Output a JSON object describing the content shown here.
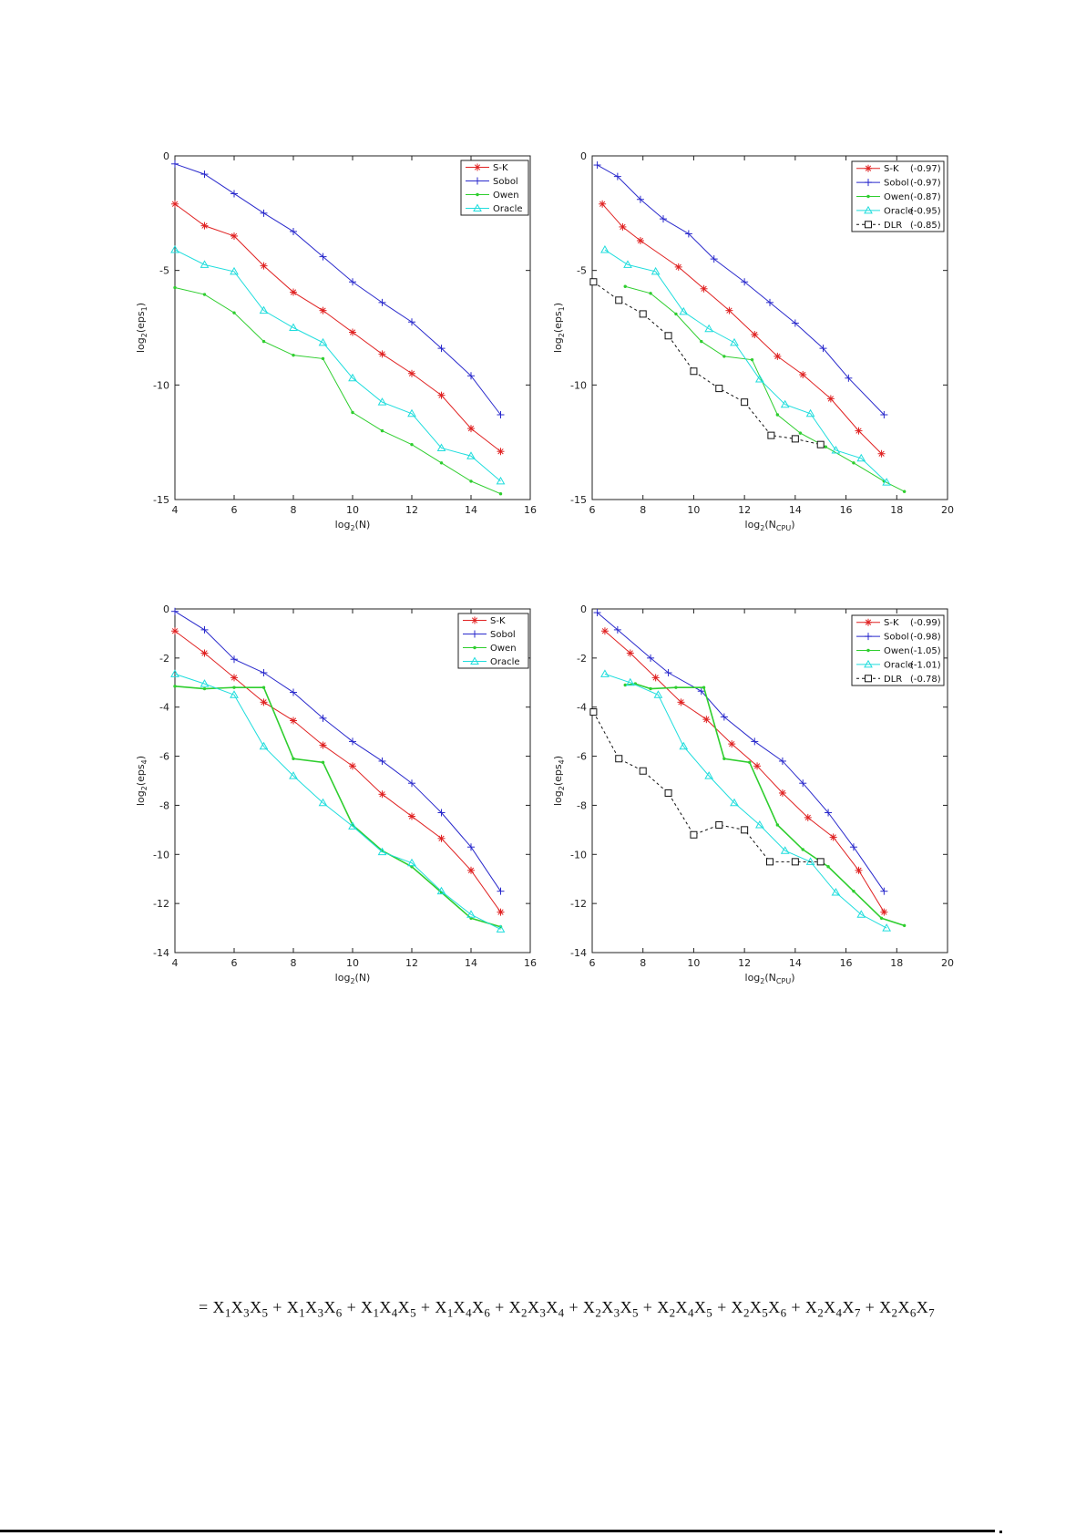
{
  "page": {
    "equation": "= X_{1}X_{3}X_{5} + X_{1}X_{3}X_{6} + X_{1}X_{4}X_{5} + X_{1}X_{4}X_{6} + X_{2}X_{3}X_{4} + X_{2}X_{3}X_{5} + X_{2}X_{4}X_{5} + X_{2}X_{5}X_{6} + X_{2}X_{4}X_{7} + X_{2}X_{6}X_{7}"
  },
  "colors": {
    "sk": "#e02222",
    "sobol": "#2929cc",
    "owen": "#2fce2f",
    "oracle": "#1fdddd",
    "dlr": "#111111",
    "axis": "#222222"
  },
  "chart_data": [
    {
      "type": "line",
      "title": "",
      "xlabel": "log_{2}(N)",
      "ylabel": "log_{2}(eps_{1})",
      "xlim": [
        4,
        16
      ],
      "ylim": [
        -15,
        0
      ],
      "xticks": [
        4,
        6,
        8,
        10,
        12,
        14,
        16
      ],
      "yticks": [
        0,
        -5,
        -10,
        -15
      ],
      "grid": false,
      "legend_position": "top-right",
      "series": [
        {
          "name": "S-K",
          "rate": "",
          "color": "#e02222",
          "marker": "star",
          "dash": false,
          "x": [
            4,
            5,
            6,
            7,
            8,
            9,
            10,
            11,
            12,
            13,
            14,
            15
          ],
          "y": [
            -2.1,
            -3.05,
            -3.5,
            -4.8,
            -5.95,
            -6.75,
            -7.7,
            -8.65,
            -9.5,
            -10.45,
            -11.9,
            -12.9
          ]
        },
        {
          "name": "Sobol",
          "rate": "",
          "color": "#2929cc",
          "marker": "plus",
          "dash": false,
          "x": [
            4,
            5,
            6,
            7,
            8,
            9,
            10,
            11,
            12,
            13,
            14,
            15
          ],
          "y": [
            -0.35,
            -0.8,
            -1.65,
            -2.5,
            -3.3,
            -4.4,
            -5.5,
            -6.4,
            -7.25,
            -8.4,
            -9.6,
            -11.3
          ]
        },
        {
          "name": "Owen",
          "rate": "",
          "color": "#2fce2f",
          "marker": "dot",
          "dash": false,
          "x": [
            4,
            5,
            6,
            7,
            8,
            9,
            10,
            11,
            12,
            13,
            14,
            15
          ],
          "y": [
            -5.75,
            -6.05,
            -6.85,
            -8.1,
            -8.7,
            -8.85,
            -11.2,
            -12.0,
            -12.6,
            -13.4,
            -14.2,
            -14.75
          ]
        },
        {
          "name": "Oracle",
          "rate": "",
          "color": "#1fdddd",
          "marker": "triangle",
          "dash": false,
          "x": [
            4,
            5,
            6,
            7,
            8,
            9,
            10,
            11,
            12,
            13,
            14,
            15
          ],
          "y": [
            -4.1,
            -4.75,
            -5.05,
            -6.75,
            -7.5,
            -8.15,
            -9.7,
            -10.75,
            -11.25,
            -12.75,
            -13.1,
            -14.2
          ]
        }
      ]
    },
    {
      "type": "line",
      "title": "",
      "xlabel": "log_{2}(N_{CPU})",
      "ylabel": "log_{2}(eps_{1})",
      "xlim": [
        6,
        20
      ],
      "ylim": [
        -15,
        0
      ],
      "xticks": [
        6,
        8,
        10,
        12,
        14,
        16,
        18,
        20
      ],
      "yticks": [
        0,
        -5,
        -10,
        -15
      ],
      "grid": false,
      "legend_position": "top-right",
      "series": [
        {
          "name": "S-K",
          "rate": "(-0.97)",
          "color": "#e02222",
          "marker": "star",
          "dash": false,
          "x": [
            6.4,
            7.2,
            7.9,
            9.4,
            10.4,
            11.4,
            12.4,
            13.3,
            14.3,
            15.4,
            16.5,
            17.4
          ],
          "y": [
            -2.1,
            -3.1,
            -3.7,
            -4.85,
            -5.8,
            -6.75,
            -7.8,
            -8.75,
            -9.55,
            -10.6,
            -12.0,
            -13.0
          ]
        },
        {
          "name": "Sobol",
          "rate": "(-0.97)",
          "color": "#2929cc",
          "marker": "plus",
          "dash": false,
          "x": [
            6.2,
            7.0,
            7.9,
            8.8,
            9.8,
            10.8,
            12.0,
            13.0,
            14.0,
            15.1,
            16.1,
            17.5
          ],
          "y": [
            -0.4,
            -0.9,
            -1.9,
            -2.75,
            -3.4,
            -4.5,
            -5.5,
            -6.4,
            -7.3,
            -8.4,
            -9.7,
            -11.3
          ]
        },
        {
          "name": "Owen",
          "rate": "(-0.87)",
          "color": "#2fce2f",
          "marker": "dot",
          "dash": false,
          "x": [
            7.3,
            8.3,
            9.3,
            10.3,
            11.2,
            12.3,
            13.3,
            14.2,
            15.2,
            16.3,
            17.5,
            18.3
          ],
          "y": [
            -5.7,
            -6.0,
            -6.9,
            -8.1,
            -8.75,
            -8.9,
            -11.3,
            -12.1,
            -12.7,
            -13.4,
            -14.2,
            -14.65
          ]
        },
        {
          "name": "Oracle",
          "rate": "(-0.95)",
          "color": "#1fdddd",
          "marker": "triangle",
          "dash": false,
          "x": [
            6.5,
            7.4,
            8.5,
            9.6,
            10.6,
            11.6,
            12.6,
            13.6,
            14.6,
            15.6,
            16.6,
            17.6
          ],
          "y": [
            -4.1,
            -4.75,
            -5.05,
            -6.8,
            -7.55,
            -8.15,
            -9.75,
            -10.85,
            -11.25,
            -12.85,
            -13.2,
            -14.25
          ]
        },
        {
          "name": "DLR",
          "rate": "(-0.85)",
          "color": "#111111",
          "marker": "square",
          "dash": true,
          "x": [
            6.05,
            7.05,
            8.0,
            9.0,
            10.0,
            11.0,
            12.0,
            13.05,
            14.0,
            15.0
          ],
          "y": [
            -5.5,
            -6.3,
            -6.9,
            -7.85,
            -9.4,
            -10.15,
            -10.75,
            -12.2,
            -12.35,
            -12.6
          ]
        }
      ]
    },
    {
      "type": "line",
      "title": "",
      "xlabel": "log_{2}(N)",
      "ylabel": "log_{2}(eps_{4})",
      "xlim": [
        4,
        16
      ],
      "ylim": [
        -14,
        0
      ],
      "xticks": [
        4,
        6,
        8,
        10,
        12,
        14,
        16
      ],
      "yticks": [
        0,
        -2,
        -4,
        -6,
        -8,
        -10,
        -12,
        -14
      ],
      "grid": false,
      "legend_position": "top-right",
      "series": [
        {
          "name": "S-K",
          "rate": "",
          "color": "#e02222",
          "marker": "star",
          "dash": false,
          "x": [
            4,
            5,
            6,
            7,
            8,
            9,
            10,
            11,
            12,
            13,
            14,
            15
          ],
          "y": [
            -0.9,
            -1.8,
            -2.8,
            -3.8,
            -4.55,
            -5.55,
            -6.4,
            -7.55,
            -8.45,
            -9.35,
            -10.65,
            -12.35
          ]
        },
        {
          "name": "Sobol",
          "rate": "",
          "color": "#2929cc",
          "marker": "plus",
          "dash": false,
          "x": [
            4,
            5,
            6,
            7,
            8,
            9,
            10,
            11,
            12,
            13,
            14,
            15
          ],
          "y": [
            -0.1,
            -0.85,
            -2.05,
            -2.6,
            -3.4,
            -4.45,
            -5.4,
            -6.2,
            -7.1,
            -8.3,
            -9.7,
            -11.5
          ]
        },
        {
          "name": "Owen",
          "rate": "",
          "color": "#2fce2f",
          "marker": "dot",
          "dash": false,
          "width": 1.6,
          "x": [
            4,
            5,
            6,
            7,
            8,
            9,
            10,
            11,
            12,
            13,
            14,
            15
          ],
          "y": [
            -3.15,
            -3.25,
            -3.2,
            -3.2,
            -6.1,
            -6.25,
            -8.8,
            -9.85,
            -10.5,
            -11.55,
            -12.6,
            -12.95
          ]
        },
        {
          "name": "Oracle",
          "rate": "",
          "color": "#1fdddd",
          "marker": "triangle",
          "dash": false,
          "x": [
            4,
            5,
            6,
            7,
            8,
            9,
            10,
            11,
            12,
            13,
            14,
            15
          ],
          "y": [
            -2.65,
            -3.05,
            -3.5,
            -5.6,
            -6.8,
            -7.9,
            -8.85,
            -9.9,
            -10.35,
            -11.5,
            -12.45,
            -13.05
          ]
        }
      ]
    },
    {
      "type": "line",
      "title": "",
      "xlabel": "log_{2}(N_{CPU})",
      "ylabel": "log_{2}(eps_{4})",
      "xlim": [
        6,
        20
      ],
      "ylim": [
        -14,
        0
      ],
      "xticks": [
        6,
        8,
        10,
        12,
        14,
        16,
        18,
        20
      ],
      "yticks": [
        0,
        -2,
        -4,
        -6,
        -8,
        -10,
        -12,
        -14
      ],
      "grid": false,
      "legend_position": "top-right",
      "series": [
        {
          "name": "S-K",
          "rate": "(-0.99)",
          "color": "#e02222",
          "marker": "star",
          "dash": false,
          "x": [
            6.5,
            7.5,
            8.5,
            9.5,
            10.5,
            11.5,
            12.5,
            13.5,
            14.5,
            15.5,
            16.5,
            17.5
          ],
          "y": [
            -0.9,
            -1.8,
            -2.8,
            -3.8,
            -4.5,
            -5.5,
            -6.4,
            -7.5,
            -8.5,
            -9.3,
            -10.65,
            -12.35
          ]
        },
        {
          "name": "Sobol",
          "rate": "(-0.98)",
          "color": "#2929cc",
          "marker": "plus",
          "dash": false,
          "x": [
            6.2,
            7.0,
            8.3,
            9.0,
            10.3,
            11.2,
            12.4,
            13.5,
            14.3,
            15.3,
            16.3,
            17.5
          ],
          "y": [
            -0.15,
            -0.85,
            -2.0,
            -2.6,
            -3.35,
            -4.4,
            -5.4,
            -6.2,
            -7.1,
            -8.3,
            -9.7,
            -11.5
          ]
        },
        {
          "name": "Owen",
          "rate": "(-1.05)",
          "color": "#2fce2f",
          "marker": "dot",
          "dash": false,
          "width": 1.6,
          "x": [
            7.3,
            7.7,
            8.3,
            9.3,
            10.4,
            11.2,
            12.2,
            13.3,
            14.3,
            15.3,
            16.3,
            17.4,
            18.3
          ],
          "y": [
            -3.1,
            -3.05,
            -3.25,
            -3.2,
            -3.2,
            -6.1,
            -6.25,
            -8.8,
            -9.8,
            -10.5,
            -11.5,
            -12.6,
            -12.9
          ]
        },
        {
          "name": "Oracle",
          "rate": "(-1.01)",
          "color": "#1fdddd",
          "marker": "triangle",
          "dash": false,
          "x": [
            6.5,
            7.5,
            8.6,
            9.6,
            10.6,
            11.6,
            12.6,
            13.6,
            14.6,
            15.6,
            16.6,
            17.6
          ],
          "y": [
            -2.65,
            -3.0,
            -3.5,
            -5.6,
            -6.8,
            -7.9,
            -8.8,
            -9.85,
            -10.3,
            -11.55,
            -12.45,
            -13.0
          ]
        },
        {
          "name": "DLR",
          "rate": "(-0.78)",
          "color": "#111111",
          "marker": "square",
          "dash": true,
          "x": [
            6.05,
            7.05,
            8.0,
            9.0,
            10.0,
            11.0,
            12.0,
            13.0,
            14.0,
            15.0
          ],
          "y": [
            -4.2,
            -6.1,
            -6.6,
            -7.5,
            -9.2,
            -8.8,
            -9.0,
            -10.3,
            -10.3,
            -10.3
          ]
        }
      ]
    }
  ]
}
